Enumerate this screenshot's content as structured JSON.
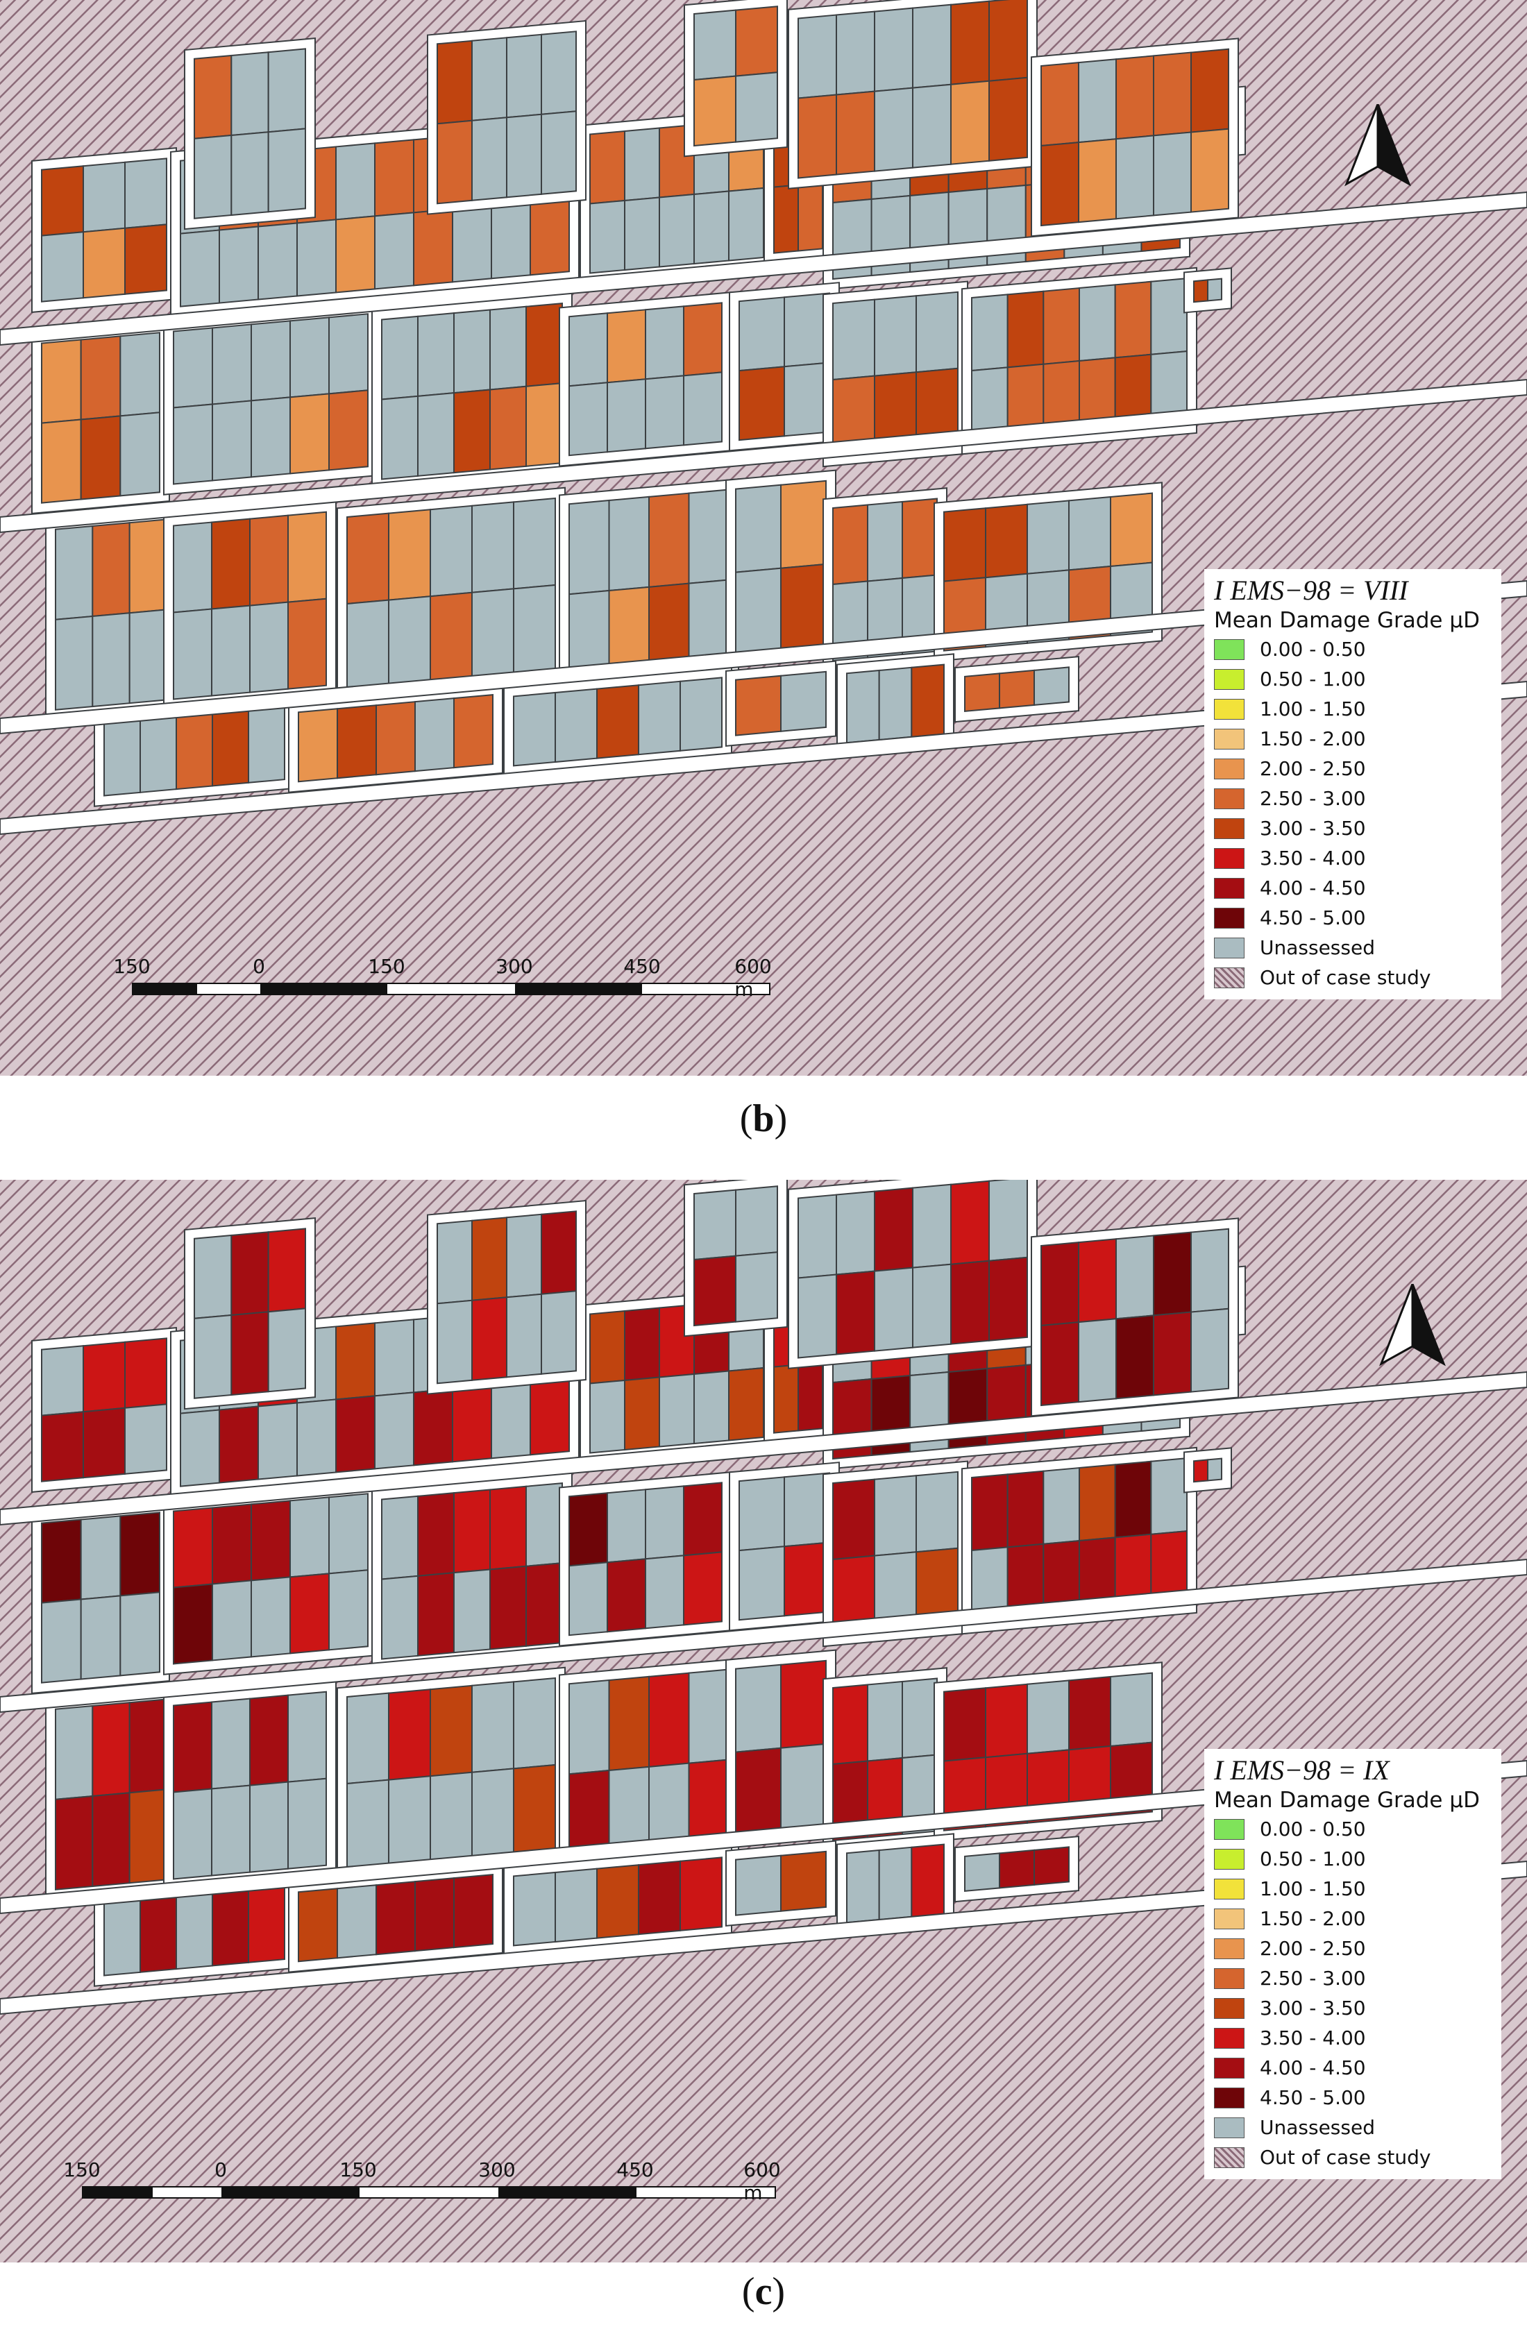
{
  "panels": [
    {
      "id": "b",
      "caption_open": "(",
      "caption_letter": "b",
      "caption_close": ")",
      "intensity_label": "I EMS−98 = VIII",
      "legend_title": "Mean Damage Grade μD",
      "scale_labels": [
        "150",
        "0",
        "150",
        "300",
        "450",
        "600 m"
      ]
    },
    {
      "id": "c",
      "caption_open": "(",
      "caption_letter": "c",
      "caption_close": ")",
      "intensity_label": "I EMS−98 = IX",
      "legend_title": "Mean Damage Grade μD",
      "scale_labels": [
        "150",
        "0",
        "150",
        "300",
        "450",
        "600 m"
      ]
    }
  ],
  "legend_items": [
    {
      "label": "0.00 - 0.50",
      "color": "#7fe35a"
    },
    {
      "label": "0.50 - 1.00",
      "color": "#c8ee2e"
    },
    {
      "label": "1.00 - 1.50",
      "color": "#f2e23a"
    },
    {
      "label": "1.50 - 2.00",
      "color": "#f2c47a"
    },
    {
      "label": "2.00 - 2.50",
      "color": "#e8944e"
    },
    {
      "label": "2.50 - 3.00",
      "color": "#d5652e"
    },
    {
      "label": "3.00 - 3.50",
      "color": "#c0440f"
    },
    {
      "label": "3.50 - 4.00",
      "color": "#cc1515"
    },
    {
      "label": "4.00 - 4.50",
      "color": "#a40d12"
    },
    {
      "label": "4.50 - 5.00",
      "color": "#6e0508"
    },
    {
      "label": "Unassessed",
      "color": "#aabcc1"
    },
    {
      "label": "Out of case study",
      "color": "#b89aa6"
    }
  ],
  "colors": {
    "unassessed": "#aabcc1",
    "out_of_study_base": "#d8c8ce",
    "out_of_study_hatch": "#8b6a78",
    "street": "#ffffff",
    "outline": "#3b3f42"
  }
}
